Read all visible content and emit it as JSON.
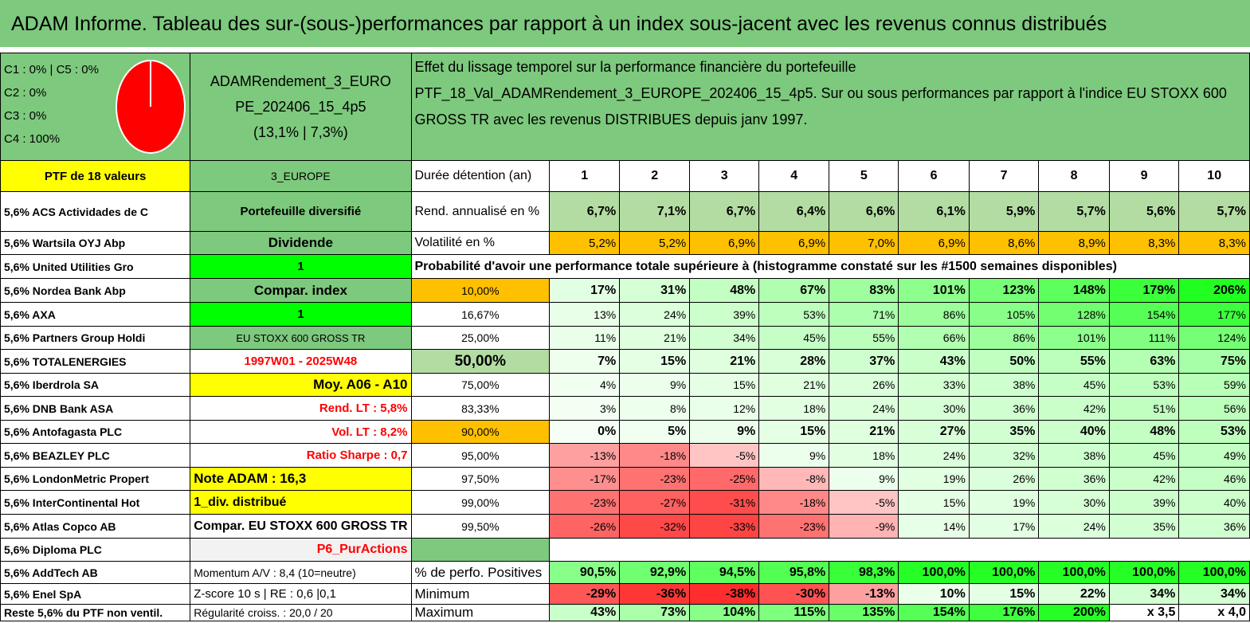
{
  "title": "ADAM Informe. Tableau des sur-(sous-)performances par rapport à un index sous-jacent avec les revenus connus distribués",
  "legend": [
    "C1 : 0% | C5 : 0%",
    "C2 : 0%",
    "C3 : 0%",
    "C4 : 100%"
  ],
  "pie": {
    "fill": "#ff0000",
    "slice_line": "#ffffff",
    "c4_share": 100
  },
  "fund": {
    "line1": "ADAMRendement_3_EURO",
    "line2": "PE_202406_15_4p5",
    "line3": "(13,1% | 7,3%)"
  },
  "description": {
    "line1": "Effet du lissage temporel sur la performance financière du portefeuille",
    "line2": "PTF_18_Val_ADAMRendement_3_EUROPE_202406_15_4p5. Sur ou sous performances par rapport à l'indice EU STOXX 600",
    "line3": "GROSS TR avec les revenus DISTRIBUES depuis janv 1997."
  },
  "portfolio_label": "PTF de 18 valeurs",
  "region": "3_EUROPE",
  "holdings": [
    "5,6% ACS Actividades de C",
    "5,6% Wartsila OYJ Abp",
    "5,6% United Utilities Gro",
    "5,6% Nordea Bank Abp",
    "5,6% AXA",
    "5,6% Partners Group Holdi",
    "5,6% TOTALENERGIES",
    "5,6% Iberdrola SA",
    "5,6% DNB Bank ASA",
    "5,6% Antofagasta PLC",
    "5,6% BEAZLEY PLC",
    "5,6% LondonMetric Propert",
    "5,6% InterContinental Hot",
    "5,6% Atlas Copco AB",
    "5,6% Diploma PLC",
    "5,6% AddTech AB",
    "5,6% Enel SpA",
    "Reste 5,6% du PTF non ventil."
  ],
  "info": [
    "Portefeuille diversifié",
    "Dividende",
    "1",
    "Compar. index",
    "1",
    "EU STOXX 600 GROSS TR",
    "1997W01 - 2025W48",
    "Moy. A06 - A10",
    "Rend. LT : 5,8%",
    "Vol. LT : 8,2%",
    "Ratio Sharpe : 0,7",
    "Note ADAM : 16,3",
    "1_div. distribué",
    "Compar. EU STOXX 600 GROSS TR",
    "P6_PurActions",
    "Momentum A/V : 8,4 (10=neutre)",
    "Z-score 10 s | RE : 0,6 |0,1",
    "Régularité croiss. : 20,0 / 20"
  ],
  "duration": {
    "label": "Durée détention (an)",
    "years": [
      "1",
      "2",
      "3",
      "4",
      "5",
      "6",
      "7",
      "8",
      "9",
      "10"
    ]
  },
  "rend": {
    "label": "Rend. annualisé en %",
    "values": [
      "6,7%",
      "7,1%",
      "6,7%",
      "6,4%",
      "6,6%",
      "6,1%",
      "5,9%",
      "5,7%",
      "5,6%",
      "5,7%"
    ]
  },
  "vol": {
    "label": "Volatilité en %",
    "values": [
      "5,2%",
      "5,2%",
      "6,9%",
      "6,9%",
      "7,0%",
      "6,9%",
      "8,6%",
      "8,9%",
      "8,3%",
      "8,3%"
    ]
  },
  "prob_title": "Probabilité d'avoir une performance totale supérieure à (histogramme constaté sur les #1500 semaines disponibles)",
  "prob_rows": [
    {
      "p": "10,00%",
      "v": [
        "17%",
        "31%",
        "48%",
        "67%",
        "83%",
        "101%",
        "123%",
        "148%",
        "179%",
        "206%"
      ]
    },
    {
      "p": "16,67%",
      "v": [
        "13%",
        "24%",
        "39%",
        "53%",
        "71%",
        "86%",
        "105%",
        "128%",
        "154%",
        "177%"
      ]
    },
    {
      "p": "25,00%",
      "v": [
        "11%",
        "21%",
        "34%",
        "45%",
        "55%",
        "66%",
        "86%",
        "101%",
        "111%",
        "124%"
      ]
    },
    {
      "p": "50,00%",
      "v": [
        "7%",
        "15%",
        "21%",
        "28%",
        "37%",
        "43%",
        "50%",
        "55%",
        "63%",
        "75%"
      ]
    },
    {
      "p": "75,00%",
      "v": [
        "4%",
        "9%",
        "15%",
        "21%",
        "26%",
        "33%",
        "38%",
        "45%",
        "53%",
        "59%"
      ]
    },
    {
      "p": "83,33%",
      "v": [
        "3%",
        "8%",
        "12%",
        "18%",
        "24%",
        "30%",
        "36%",
        "42%",
        "51%",
        "56%"
      ]
    },
    {
      "p": "90,00%",
      "v": [
        "0%",
        "5%",
        "9%",
        "15%",
        "21%",
        "27%",
        "35%",
        "40%",
        "48%",
        "53%"
      ]
    },
    {
      "p": "95,00%",
      "v": [
        "-13%",
        "-18%",
        "-5%",
        "9%",
        "18%",
        "24%",
        "32%",
        "38%",
        "45%",
        "49%"
      ]
    },
    {
      "p": "97,50%",
      "v": [
        "-17%",
        "-23%",
        "-25%",
        "-8%",
        "9%",
        "19%",
        "26%",
        "36%",
        "42%",
        "46%"
      ]
    },
    {
      "p": "99,00%",
      "v": [
        "-23%",
        "-27%",
        "-31%",
        "-18%",
        "-5%",
        "15%",
        "19%",
        "30%",
        "39%",
        "40%"
      ]
    },
    {
      "p": "99,50%",
      "v": [
        "-26%",
        "-32%",
        "-33%",
        "-23%",
        "-9%",
        "14%",
        "17%",
        "24%",
        "35%",
        "36%"
      ]
    }
  ],
  "pos": {
    "label": "% de perfo. Positives",
    "values": [
      "90,5%",
      "92,9%",
      "94,5%",
      "95,8%",
      "98,3%",
      "100,0%",
      "100,0%",
      "100,0%",
      "100,0%",
      "100,0%"
    ]
  },
  "min": {
    "label": "Minimum",
    "values": [
      "-29%",
      "-36%",
      "-38%",
      "-30%",
      "-13%",
      "10%",
      "15%",
      "22%",
      "34%",
      "34%"
    ]
  },
  "max": {
    "label": "Maximum",
    "values": [
      "43%",
      "73%",
      "104%",
      "115%",
      "135%",
      "154%",
      "176%",
      "200%",
      "x 3,5",
      "x 4,0"
    ]
  }
}
